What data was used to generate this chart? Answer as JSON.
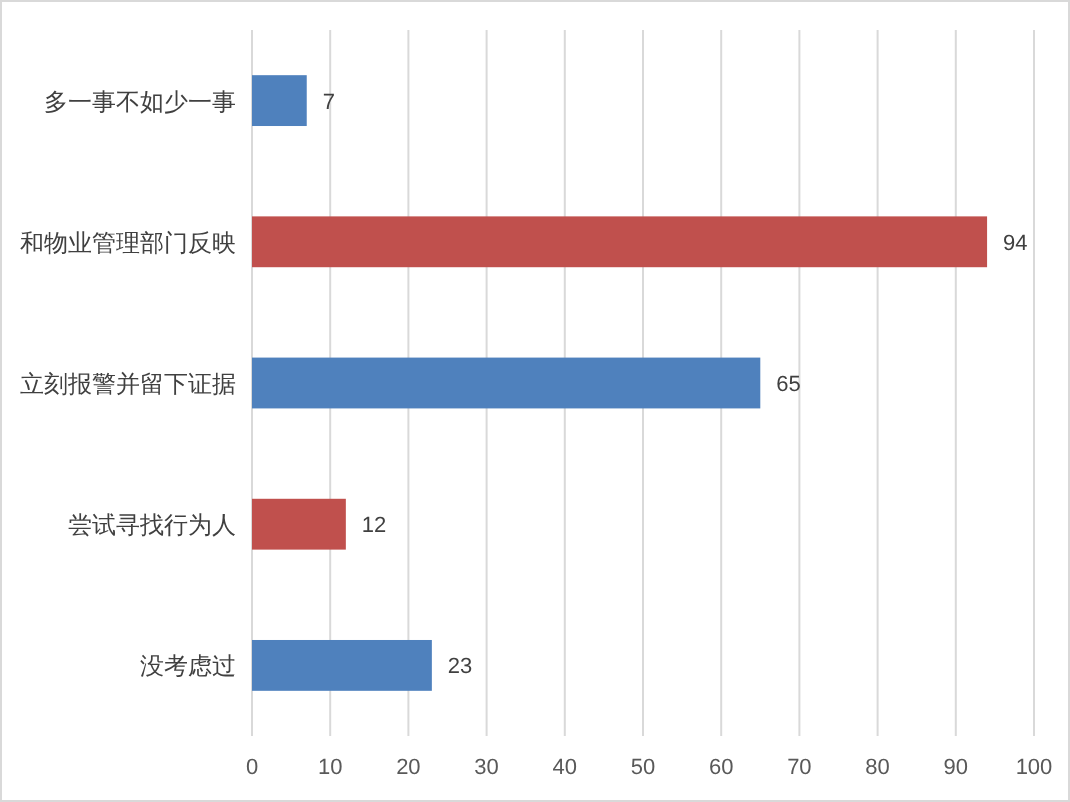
{
  "chart_data": {
    "type": "bar",
    "orientation": "horizontal",
    "categories": [
      "多一事不如少一事",
      "和物业管理部门反映",
      "立刻报警并留下证据",
      "尝试寻找行为人",
      "没考虑过"
    ],
    "values": [
      7,
      94,
      65,
      12,
      23
    ],
    "colors": [
      "#4f81bd",
      "#c0504d",
      "#4f81bd",
      "#c0504d",
      "#4f81bd"
    ],
    "xlim": [
      0,
      100
    ],
    "xticks": [
      0,
      10,
      20,
      30,
      40,
      50,
      60,
      70,
      80,
      90,
      100
    ],
    "grid": "x",
    "data_labels": true
  }
}
